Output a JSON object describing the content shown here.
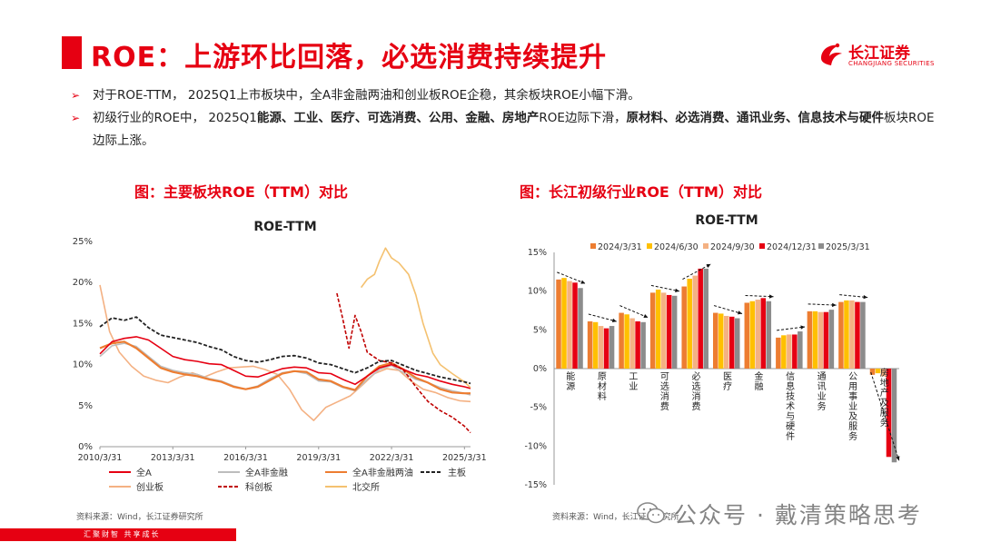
{
  "title": "ROE：上游环比回落，必选消费持续提升",
  "logo": {
    "cn": "长江证券",
    "en": "CHANGJIANG SECURITIES"
  },
  "bullets": [
    {
      "segments": [
        {
          "t": "对于ROE-TTM， 2025Q1上市板块中，全A非金融两油和创业板ROE企稳，其余板块ROE小幅下滑。",
          "b": false
        }
      ]
    },
    {
      "segments": [
        {
          "t": "初级行业的ROE中， 2025Q1",
          "b": false
        },
        {
          "t": "能源、工业、医疗、可选消费、公用、金融、房地产",
          "b": true
        },
        {
          "t": "ROE边际下滑，",
          "b": false
        },
        {
          "t": "原材料、必选消费、通讯业务、信息技术与硬件",
          "b": true
        },
        {
          "t": "板块ROE边际上涨。",
          "b": false
        }
      ]
    }
  ],
  "fig1_title": "图：主要板块ROE（TTM）对比",
  "fig2_title": "图：长江初级行业ROE（TTM）对比",
  "source1": "资料来源：Wind，长江证券研究所",
  "source2": "资料来源：Wind，长江证券研究所",
  "footer": "汇聚财智   共享成长",
  "watermark": "公众号 · 戴清策略思考",
  "chart_data": [
    {
      "type": "line",
      "title": "ROE-TTM",
      "x_ticks": [
        "2010/3/31",
        "2013/3/31",
        "2016/3/31",
        "2019/3/31",
        "2022/3/31",
        "2025/3/31"
      ],
      "x_range": [
        2010.0,
        2025.25
      ],
      "ylim": [
        0,
        25
      ],
      "y_ticks": [
        "0%",
        "5%",
        "10%",
        "15%",
        "20%",
        "25%"
      ],
      "series": [
        {
          "name": "全A",
          "color": "#e60012",
          "dash": "",
          "width": 1.6,
          "points": [
            [
              2010.0,
              11.3
            ],
            [
              2010.5,
              12.8
            ],
            [
              2011.0,
              13.2
            ],
            [
              2011.5,
              13.4
            ],
            [
              2012.0,
              13.0
            ],
            [
              2012.5,
              12.0
            ],
            [
              2013.0,
              11.0
            ],
            [
              2013.5,
              10.6
            ],
            [
              2014.0,
              10.4
            ],
            [
              2014.5,
              10.1
            ],
            [
              2015.0,
              10.0
            ],
            [
              2015.5,
              9.3
            ],
            [
              2016.0,
              8.6
            ],
            [
              2016.5,
              8.5
            ],
            [
              2017.0,
              9.0
            ],
            [
              2017.5,
              9.5
            ],
            [
              2018.0,
              9.7
            ],
            [
              2018.5,
              9.6
            ],
            [
              2019.0,
              9.0
            ],
            [
              2019.5,
              8.9
            ],
            [
              2020.0,
              8.2
            ],
            [
              2020.5,
              7.6
            ],
            [
              2021.0,
              8.6
            ],
            [
              2021.5,
              9.6
            ],
            [
              2022.0,
              10.0
            ],
            [
              2022.5,
              9.4
            ],
            [
              2023.0,
              8.8
            ],
            [
              2023.5,
              8.5
            ],
            [
              2024.0,
              8.0
            ],
            [
              2024.5,
              7.6
            ],
            [
              2025.0,
              7.3
            ],
            [
              2025.25,
              7.1
            ]
          ]
        },
        {
          "name": "全A非金融",
          "color": "#bdbdbd",
          "dash": "",
          "width": 1.6,
          "points": [
            [
              2010.0,
              11.0
            ],
            [
              2010.5,
              12.3
            ],
            [
              2011.0,
              12.6
            ],
            [
              2011.5,
              12.2
            ],
            [
              2012.0,
              11.0
            ],
            [
              2012.5,
              9.8
            ],
            [
              2013.0,
              9.3
            ],
            [
              2013.5,
              9.0
            ],
            [
              2014.0,
              8.8
            ],
            [
              2014.5,
              8.3
            ],
            [
              2015.0,
              8.0
            ],
            [
              2015.5,
              7.4
            ],
            [
              2016.0,
              7.0
            ],
            [
              2016.5,
              7.4
            ],
            [
              2017.0,
              8.3
            ],
            [
              2017.5,
              9.0
            ],
            [
              2018.0,
              9.2
            ],
            [
              2018.5,
              8.9
            ],
            [
              2019.0,
              8.0
            ],
            [
              2019.5,
              7.9
            ],
            [
              2020.0,
              7.2
            ],
            [
              2020.5,
              6.8
            ],
            [
              2021.0,
              8.2
            ],
            [
              2021.5,
              9.4
            ],
            [
              2022.0,
              9.9
            ],
            [
              2022.5,
              9.0
            ],
            [
              2023.0,
              8.2
            ],
            [
              2023.5,
              7.8
            ],
            [
              2024.0,
              7.2
            ],
            [
              2024.5,
              6.8
            ],
            [
              2025.0,
              6.5
            ],
            [
              2025.25,
              6.3
            ]
          ]
        },
        {
          "name": "全A非金融两油",
          "color": "#ed7d31",
          "dash": "",
          "width": 2.2,
          "points": [
            [
              2010.0,
              12.0
            ],
            [
              2010.5,
              12.6
            ],
            [
              2011.0,
              12.8
            ],
            [
              2011.5,
              12.0
            ],
            [
              2012.0,
              10.8
            ],
            [
              2012.5,
              9.6
            ],
            [
              2013.0,
              9.1
            ],
            [
              2013.5,
              8.8
            ],
            [
              2014.0,
              8.6
            ],
            [
              2014.5,
              8.2
            ],
            [
              2015.0,
              7.9
            ],
            [
              2015.5,
              7.3
            ],
            [
              2016.0,
              7.0
            ],
            [
              2016.5,
              7.3
            ],
            [
              2017.0,
              8.1
            ],
            [
              2017.5,
              8.9
            ],
            [
              2018.0,
              9.2
            ],
            [
              2018.5,
              9.1
            ],
            [
              2019.0,
              8.2
            ],
            [
              2019.5,
              8.0
            ],
            [
              2020.0,
              7.3
            ],
            [
              2020.5,
              6.9
            ],
            [
              2021.0,
              8.6
            ],
            [
              2021.5,
              9.8
            ],
            [
              2022.0,
              10.2
            ],
            [
              2022.5,
              9.4
            ],
            [
              2023.0,
              8.4
            ],
            [
              2023.5,
              7.8
            ],
            [
              2024.0,
              7.0
            ],
            [
              2024.5,
              6.6
            ],
            [
              2025.0,
              6.5
            ],
            [
              2025.25,
              6.5
            ]
          ]
        },
        {
          "name": "主板",
          "color": "#222222",
          "dash": "4,2",
          "width": 1.8,
          "points": [
            [
              2010.0,
              14.6
            ],
            [
              2010.5,
              15.7
            ],
            [
              2011.0,
              15.4
            ],
            [
              2011.5,
              15.8
            ],
            [
              2012.0,
              14.5
            ],
            [
              2012.5,
              13.6
            ],
            [
              2013.0,
              13.3
            ],
            [
              2013.5,
              13.0
            ],
            [
              2014.0,
              12.7
            ],
            [
              2014.5,
              12.2
            ],
            [
              2015.0,
              11.8
            ],
            [
              2015.5,
              11.0
            ],
            [
              2016.0,
              10.5
            ],
            [
              2016.5,
              10.3
            ],
            [
              2017.0,
              10.6
            ],
            [
              2017.5,
              11.0
            ],
            [
              2018.0,
              11.1
            ],
            [
              2018.5,
              10.8
            ],
            [
              2019.0,
              10.2
            ],
            [
              2019.5,
              10.0
            ],
            [
              2020.0,
              9.5
            ],
            [
              2020.5,
              9.0
            ],
            [
              2021.0,
              9.6
            ],
            [
              2021.5,
              10.4
            ],
            [
              2022.0,
              10.5
            ],
            [
              2022.5,
              9.9
            ],
            [
              2023.0,
              9.3
            ],
            [
              2023.5,
              8.9
            ],
            [
              2024.0,
              8.5
            ],
            [
              2024.5,
              8.2
            ],
            [
              2025.0,
              7.9
            ],
            [
              2025.25,
              7.7
            ]
          ]
        },
        {
          "name": "创业板",
          "color": "#f4b183",
          "dash": "",
          "width": 1.6,
          "points": [
            [
              2010.0,
              19.7
            ],
            [
              2010.4,
              14.0
            ],
            [
              2010.8,
              11.5
            ],
            [
              2011.3,
              9.8
            ],
            [
              2011.8,
              8.6
            ],
            [
              2012.3,
              8.1
            ],
            [
              2012.8,
              7.8
            ],
            [
              2013.3,
              8.5
            ],
            [
              2013.8,
              9.0
            ],
            [
              2014.3,
              8.5
            ],
            [
              2014.8,
              9.1
            ],
            [
              2015.3,
              9.6
            ],
            [
              2015.8,
              9.7
            ],
            [
              2016.3,
              9.8
            ],
            [
              2016.8,
              9.4
            ],
            [
              2017.3,
              8.8
            ],
            [
              2017.8,
              7.0
            ],
            [
              2018.3,
              4.5
            ],
            [
              2018.8,
              3.2
            ],
            [
              2019.3,
              4.8
            ],
            [
              2019.8,
              5.5
            ],
            [
              2020.3,
              6.2
            ],
            [
              2020.8,
              7.5
            ],
            [
              2021.3,
              8.9
            ],
            [
              2021.8,
              9.5
            ],
            [
              2022.3,
              9.3
            ],
            [
              2022.8,
              8.0
            ],
            [
              2023.3,
              7.0
            ],
            [
              2023.8,
              6.6
            ],
            [
              2024.3,
              6.0
            ],
            [
              2024.8,
              5.6
            ],
            [
              2025.25,
              5.5
            ]
          ]
        },
        {
          "name": "科创板",
          "color": "#c00000",
          "dash": "4,2",
          "width": 1.6,
          "points": [
            [
              2019.75,
              18.7
            ],
            [
              2020.0,
              15.5
            ],
            [
              2020.25,
              12.0
            ],
            [
              2020.5,
              16.0
            ],
            [
              2020.75,
              14.0
            ],
            [
              2021.0,
              11.5
            ],
            [
              2021.5,
              10.5
            ],
            [
              2022.0,
              10.2
            ],
            [
              2022.5,
              9.3
            ],
            [
              2023.0,
              7.3
            ],
            [
              2023.5,
              5.5
            ],
            [
              2024.0,
              4.4
            ],
            [
              2024.5,
              3.6
            ],
            [
              2025.0,
              2.5
            ],
            [
              2025.25,
              1.7
            ]
          ]
        },
        {
          "name": "北交所",
          "color": "#f4c170",
          "dash": "",
          "width": 1.6,
          "points": [
            [
              2020.75,
              19.4
            ],
            [
              2021.0,
              20.4
            ],
            [
              2021.3,
              21.0
            ],
            [
              2021.5,
              22.6
            ],
            [
              2021.75,
              24.2
            ],
            [
              2022.0,
              23.0
            ],
            [
              2022.3,
              22.4
            ],
            [
              2022.7,
              21.0
            ],
            [
              2023.0,
              18.5
            ],
            [
              2023.3,
              15.0
            ],
            [
              2023.7,
              11.4
            ],
            [
              2024.0,
              10.0
            ],
            [
              2024.5,
              8.9
            ],
            [
              2025.0,
              7.9
            ],
            [
              2025.25,
              7.2
            ]
          ]
        }
      ]
    },
    {
      "type": "bar",
      "title": "ROE-TTM",
      "ylim": [
        -15,
        15
      ],
      "y_ticks": [
        "-15%",
        "-10%",
        "-5%",
        "0%",
        "5%",
        "10%",
        "15%"
      ],
      "categories": [
        "能源",
        "原材料",
        "工业",
        "可选消费",
        "必选消费",
        "医疗",
        "金融",
        "信息技术与硬件",
        "通讯业务",
        "公用事业及服务",
        "房地产及服务"
      ],
      "series": [
        {
          "name": "2024/3/31",
          "color": "#ed7d31",
          "values": [
            11.5,
            6.1,
            7.2,
            9.8,
            10.6,
            7.2,
            8.5,
            4.0,
            7.4,
            8.6,
            -0.8
          ]
        },
        {
          "name": "2024/6/30",
          "color": "#ffc000",
          "values": [
            11.7,
            6.0,
            7.0,
            10.2,
            11.6,
            7.1,
            8.7,
            4.3,
            7.4,
            8.8,
            -0.6
          ]
        },
        {
          "name": "2024/9/30",
          "color": "#f4b183",
          "values": [
            11.3,
            5.5,
            6.5,
            9.8,
            12.0,
            6.8,
            8.9,
            4.4,
            7.3,
            8.8,
            -1.0
          ]
        },
        {
          "name": "2024/12/31",
          "color": "#e60012",
          "values": [
            11.1,
            5.2,
            6.1,
            9.5,
            12.9,
            6.7,
            9.1,
            4.4,
            7.3,
            8.6,
            -11.4
          ]
        },
        {
          "name": "2025/3/31",
          "color": "#8c8c8c",
          "values": [
            10.4,
            5.5,
            6.0,
            9.4,
            12.9,
            6.5,
            8.7,
            4.8,
            7.6,
            8.6,
            -12.1
          ]
        }
      ]
    }
  ]
}
